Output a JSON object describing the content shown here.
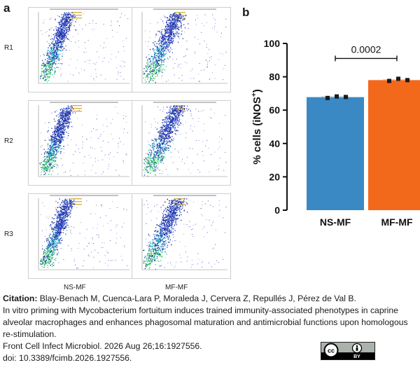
{
  "panel_a": {
    "letter": "a",
    "rows": [
      "R1",
      "R2",
      "R3"
    ],
    "columns": [
      "NS-MF",
      "MF-MF"
    ]
  },
  "panel_b": {
    "letter": "b"
  },
  "chart_data": {
    "type": "bar",
    "title": "",
    "xlabel": "",
    "ylabel": "% cells (iNOS",
    "ylabel_superscript": "+",
    "ylabel_close": ")",
    "categories": [
      "NS-MF",
      "MF-MF"
    ],
    "values": [
      67.8,
      78.0
    ],
    "colors": [
      "#3a89c4",
      "#f2691b"
    ],
    "points": [
      [
        67.3,
        68.2,
        67.9
      ],
      [
        77.5,
        78.8,
        78.0
      ]
    ],
    "ylim": [
      0,
      100
    ],
    "yticks": [
      0,
      20,
      40,
      60,
      80,
      100
    ],
    "grid": false,
    "annotation": {
      "label": "0.0002",
      "between": [
        "NS-MF",
        "MF-MF"
      ]
    }
  },
  "caption": {
    "citation_label": "Citation:",
    "authors": " Blay-Benach M, Cuenca-Lara P, Moraleda J, Cervera Z, Repullés J, Pérez de Val B.",
    "title": "In vitro priming with Mycobacterium fortuitum induces trained immunity-associated phenotypes in caprine alveolar macrophages and enhances phagosomal maturation and antimicrobial functions upon homologous re-stimulation.",
    "journal": "Front Cell Infect Microbiol. 2026 Aug 26;16:1927556.",
    "doi": "doi: 10.3389/fcimb.2026.1927556."
  },
  "license_badge": {
    "cc": "cc",
    "by": "BY",
    "icon": "person-icon"
  }
}
